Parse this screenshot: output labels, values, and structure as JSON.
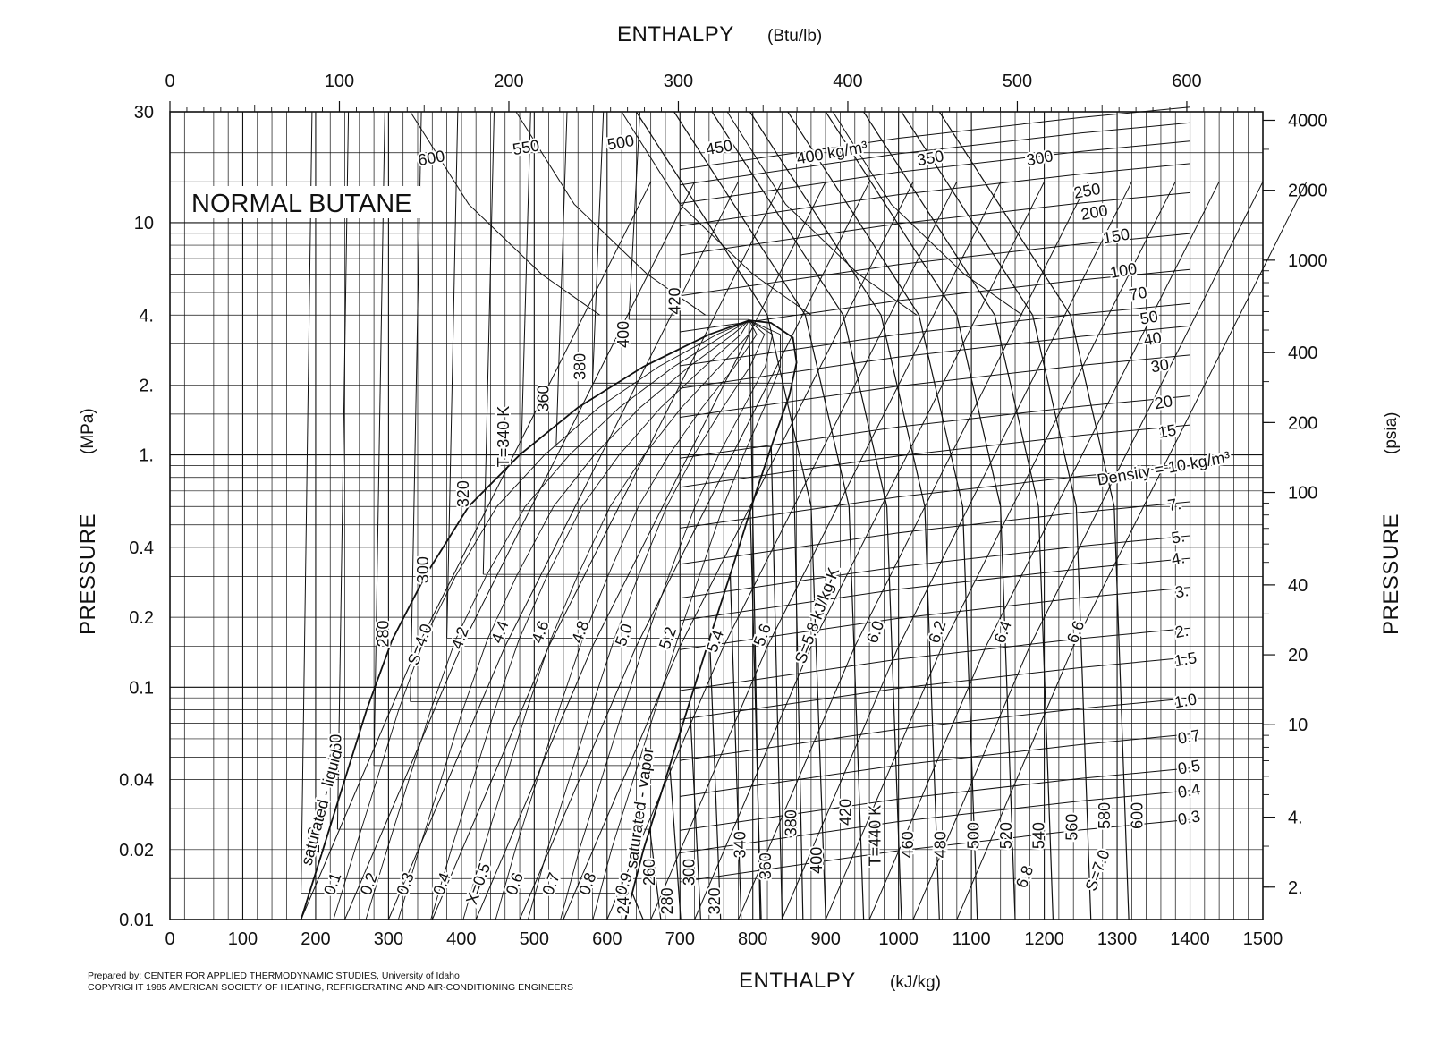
{
  "chart_data": {
    "type": "line",
    "title": "NORMAL BUTANE",
    "xlabel": {
      "text": "ENTHALPY",
      "unit": "(kJ/kg)"
    },
    "x2label": {
      "text": "ENTHALPY",
      "unit": "(Btu/lb)"
    },
    "ylabel": {
      "text": "PRESSURE",
      "unit": "(MPa)"
    },
    "y2label": {
      "text": "PRESSURE",
      "unit": "(psia)"
    },
    "xlim": [
      0,
      1500
    ],
    "ylim": [
      0.01,
      30
    ],
    "yscale": "log",
    "grid": true,
    "x_ticks": [
      "0",
      "100",
      "200",
      "300",
      "400",
      "500",
      "600",
      "700",
      "800",
      "900",
      "1000",
      "1100",
      "1200",
      "1300",
      "1400",
      "1500"
    ],
    "x2_ticks": [
      {
        "label": "0",
        "value": 0
      },
      {
        "label": "100",
        "value": 100
      },
      {
        "label": "200",
        "value": 200
      },
      {
        "label": "300",
        "value": 300
      },
      {
        "label": "400",
        "value": 400
      },
      {
        "label": "500",
        "value": 500
      },
      {
        "label": "600",
        "value": 600
      }
    ],
    "y_ticks": [
      {
        "label": "30",
        "value": 30
      },
      {
        "label": "10",
        "value": 10
      },
      {
        "label": "4.",
        "value": 4
      },
      {
        "label": "2.",
        "value": 2
      },
      {
        "label": "1.",
        "value": 1
      },
      {
        "label": "0.4",
        "value": 0.4
      },
      {
        "label": "0.2",
        "value": 0.2
      },
      {
        "label": "0.1",
        "value": 0.1
      },
      {
        "label": "0.04",
        "value": 0.04
      },
      {
        "label": "0.02",
        "value": 0.02
      },
      {
        "label": "0.01",
        "value": 0.01
      }
    ],
    "y2_ticks": [
      {
        "label": "4000",
        "value": 4000
      },
      {
        "label": "2000",
        "value": 2000
      },
      {
        "label": "1000",
        "value": 1000
      },
      {
        "label": "400",
        "value": 400
      },
      {
        "label": "200",
        "value": 200
      },
      {
        "label": "100",
        "value": 100
      },
      {
        "label": "40",
        "value": 40
      },
      {
        "label": "20",
        "value": 20
      },
      {
        "label": "10",
        "value": 10
      },
      {
        "label": "4.",
        "value": 4
      },
      {
        "label": "2.",
        "value": 2
      }
    ],
    "saturation_dome": {
      "liquid": [
        [
          180,
          0.01
        ],
        [
          210,
          0.02
        ],
        [
          240,
          0.04
        ],
        [
          270,
          0.08
        ],
        [
          305,
          0.16
        ],
        [
          350,
          0.3
        ],
        [
          410,
          0.6
        ],
        [
          480,
          1.0
        ],
        [
          560,
          1.6
        ],
        [
          650,
          2.4
        ],
        [
          740,
          3.3
        ],
        [
          795,
          3.796
        ]
      ],
      "vapor": [
        [
          625,
          0.01
        ],
        [
          650,
          0.02
        ],
        [
          680,
          0.04
        ],
        [
          710,
          0.08
        ],
        [
          740,
          0.16
        ],
        [
          775,
          0.35
        ],
        [
          805,
          0.7
        ],
        [
          830,
          1.2
        ],
        [
          850,
          1.8
        ],
        [
          860,
          2.5
        ],
        [
          855,
          3.2
        ],
        [
          825,
          3.7
        ],
        [
          795,
          3.796
        ]
      ],
      "liquid_label": "saturated - liquid",
      "vapor_label": "saturated - vapor"
    },
    "quality_labels": [
      "0.1",
      "0.2",
      "0.3",
      "0.4",
      "X=0.5",
      "0.6",
      "0.7",
      "0.8",
      "0.9"
    ],
    "isotherm_labels": [
      {
        "text": "240",
        "h": 205,
        "p": 0.022
      },
      {
        "text": "260",
        "h": 235,
        "p": 0.055
      },
      {
        "text": "280",
        "h": 300,
        "p": 0.17
      },
      {
        "text": "300",
        "h": 355,
        "p": 0.32
      },
      {
        "text": "320",
        "h": 410,
        "p": 0.68
      },
      {
        "text": "T=340 K",
        "h": 465,
        "p": 1.2
      },
      {
        "text": "360",
        "h": 520,
        "p": 1.75
      },
      {
        "text": "380",
        "h": 570,
        "p": 2.4
      },
      {
        "text": "400",
        "h": 630,
        "p": 3.3
      },
      {
        "text": "420",
        "h": 700,
        "p": 4.6
      },
      {
        "text": "240",
        "h": 630,
        "p": 0.012
      },
      {
        "text": "260",
        "h": 665,
        "p": 0.016
      },
      {
        "text": "280",
        "h": 690,
        "p": 0.012
      },
      {
        "text": "300",
        "h": 720,
        "p": 0.016
      },
      {
        "text": "320",
        "h": 755,
        "p": 0.012
      },
      {
        "text": "340",
        "h": 790,
        "p": 0.021
      },
      {
        "text": "360",
        "h": 825,
        "p": 0.017
      },
      {
        "text": "380",
        "h": 860,
        "p": 0.026
      },
      {
        "text": "400",
        "h": 895,
        "p": 0.018
      },
      {
        "text": "420",
        "h": 935,
        "p": 0.029
      },
      {
        "text": "T=440 K",
        "h": 975,
        "p": 0.023
      },
      {
        "text": "460",
        "h": 1020,
        "p": 0.021
      },
      {
        "text": "480",
        "h": 1065,
        "p": 0.021
      },
      {
        "text": "500",
        "h": 1110,
        "p": 0.023
      },
      {
        "text": "520",
        "h": 1155,
        "p": 0.023
      },
      {
        "text": "540",
        "h": 1200,
        "p": 0.023
      },
      {
        "text": "560",
        "h": 1245,
        "p": 0.025
      },
      {
        "text": "580",
        "h": 1290,
        "p": 0.028
      },
      {
        "text": "600",
        "h": 1335,
        "p": 0.028
      }
    ],
    "entropy_labels": [
      {
        "text": "S=4.0",
        "h": 350,
        "p": 0.15
      },
      {
        "text": "4.2",
        "h": 405,
        "p": 0.16
      },
      {
        "text": "4.4",
        "h": 460,
        "p": 0.17
      },
      {
        "text": "4.6",
        "h": 515,
        "p": 0.17
      },
      {
        "text": "4.8",
        "h": 570,
        "p": 0.17
      },
      {
        "text": "5.0",
        "h": 630,
        "p": 0.165
      },
      {
        "text": "5.2",
        "h": 690,
        "p": 0.16
      },
      {
        "text": "5.4",
        "h": 755,
        "p": 0.155
      },
      {
        "text": "5.6",
        "h": 820,
        "p": 0.165
      },
      {
        "text": "S=5.8 kJ/kg-K",
        "h": 895,
        "p": 0.2
      },
      {
        "text": "6.0",
        "h": 975,
        "p": 0.17
      },
      {
        "text": "6.2",
        "h": 1060,
        "p": 0.17
      },
      {
        "text": "6.4",
        "h": 1150,
        "p": 0.17
      },
      {
        "text": "6.6",
        "h": 1250,
        "p": 0.17
      },
      {
        "text": "6.8",
        "h": 1180,
        "p": 0.015
      },
      {
        "text": "S=7.0",
        "h": 1280,
        "p": 0.016
      }
    ],
    "density_labels": [
      {
        "text": "600",
        "h": 360,
        "p": 18
      },
      {
        "text": "550",
        "h": 490,
        "p": 20
      },
      {
        "text": "500",
        "h": 620,
        "p": 21
      },
      {
        "text": "450",
        "h": 755,
        "p": 20
      },
      {
        "text": "400 kg/m³",
        "h": 910,
        "p": 19
      },
      {
        "text": "350",
        "h": 1045,
        "p": 18
      },
      {
        "text": "300",
        "h": 1195,
        "p": 18
      },
      {
        "text": "250",
        "h": 1260,
        "p": 13
      },
      {
        "text": "200",
        "h": 1270,
        "p": 10.5
      },
      {
        "text": "150",
        "h": 1300,
        "p": 8.3
      },
      {
        "text": "100",
        "h": 1310,
        "p": 5.9
      },
      {
        "text": "70",
        "h": 1330,
        "p": 4.7
      },
      {
        "text": "50",
        "h": 1345,
        "p": 3.7
      },
      {
        "text": "40",
        "h": 1350,
        "p": 3.0
      },
      {
        "text": "30",
        "h": 1360,
        "p": 2.3
      },
      {
        "text": "20",
        "h": 1365,
        "p": 1.6
      },
      {
        "text": "15",
        "h": 1370,
        "p": 1.2
      },
      {
        "text": "Density = 10 kg/m³",
        "h": 1365,
        "p": 0.83
      },
      {
        "text": "7.",
        "h": 1380,
        "p": 0.58
      },
      {
        "text": "5.",
        "h": 1385,
        "p": 0.42
      },
      {
        "text": "4.",
        "h": 1385,
        "p": 0.34
      },
      {
        "text": "3.",
        "h": 1390,
        "p": 0.245
      },
      {
        "text": "2.",
        "h": 1390,
        "p": 0.165
      },
      {
        "text": "1.5",
        "h": 1395,
        "p": 0.125
      },
      {
        "text": "1.0",
        "h": 1395,
        "p": 0.083
      },
      {
        "text": "0.7",
        "h": 1400,
        "p": 0.058
      },
      {
        "text": "0.5",
        "h": 1400,
        "p": 0.043
      },
      {
        "text": "0.4",
        "h": 1400,
        "p": 0.034
      },
      {
        "text": "0.3",
        "h": 1400,
        "p": 0.026
      }
    ]
  },
  "credits": {
    "line1": "Prepared by:  CENTER FOR APPLIED THERMODYNAMIC STUDIES, University of Idaho",
    "line2": "COPYRIGHT 1985  AMERICAN SOCIETY OF HEATING, REFRIGERATING AND AIR-CONDITIONING ENGINEERS"
  }
}
